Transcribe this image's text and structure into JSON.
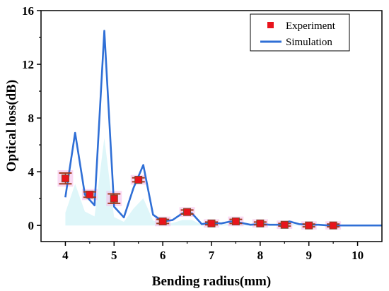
{
  "chart_data": {
    "type": "line",
    "title": "",
    "xlabel": "Bending radius(mm)",
    "ylabel": "Optical loss(dB)",
    "xlim": [
      3.5,
      10.5
    ],
    "ylim": [
      -1.2,
      16
    ],
    "xticks": [
      4,
      5,
      6,
      7,
      8,
      9,
      10
    ],
    "yticks": [
      0,
      4,
      8,
      12,
      16
    ],
    "xtick_labels": [
      "4",
      "5",
      "6",
      "7",
      "8",
      "9",
      "10"
    ],
    "ytick_labels": [
      "0",
      "4",
      "8",
      "12",
      "16"
    ],
    "grid": false,
    "legend_position": "top-right",
    "series": [
      {
        "name": "Experiment",
        "style": "scatter",
        "color": "#e8141c",
        "x": [
          4.0,
          4.5,
          5.0,
          5.5,
          6.0,
          6.5,
          7.0,
          7.5,
          8.0,
          8.5,
          9.0,
          9.5
        ],
        "y": [
          3.5,
          2.3,
          2.0,
          3.4,
          0.3,
          1.0,
          0.15,
          0.3,
          0.15,
          0.05,
          0.0,
          0.0
        ],
        "error": [
          0.4,
          0.2,
          0.35,
          0.15,
          0.15,
          0.15,
          0.1,
          0.15,
          0.1,
          0.1,
          0.1,
          0.1
        ]
      },
      {
        "name": "Simulation",
        "style": "line",
        "color": "#2f6fd6",
        "x": [
          4.0,
          4.2,
          4.4,
          4.6,
          4.8,
          5.0,
          5.2,
          5.4,
          5.6,
          5.8,
          6.0,
          6.2,
          6.4,
          6.6,
          6.8,
          7.0,
          7.2,
          7.4,
          7.6,
          7.8,
          8.0,
          8.2,
          8.4,
          8.6,
          8.8,
          9.0,
          9.2,
          9.4,
          9.6,
          9.8,
          10.0,
          10.5
        ],
        "y": [
          2.1,
          6.9,
          2.3,
          1.5,
          14.5,
          1.4,
          0.6,
          2.8,
          4.5,
          0.8,
          0.3,
          0.4,
          0.9,
          0.9,
          0.1,
          0.2,
          0.15,
          0.3,
          0.2,
          0.05,
          0.1,
          0.05,
          0.05,
          0.3,
          0.1,
          0.05,
          0.05,
          0.0,
          0.0,
          0.0,
          0.0,
          0.0
        ]
      }
    ]
  },
  "colors": {
    "error_bar": "#a23b1f",
    "marker_edge": "#7a4a2a",
    "band_fill": "#c8f0f5",
    "band_highlight": "#f6b8e8"
  }
}
